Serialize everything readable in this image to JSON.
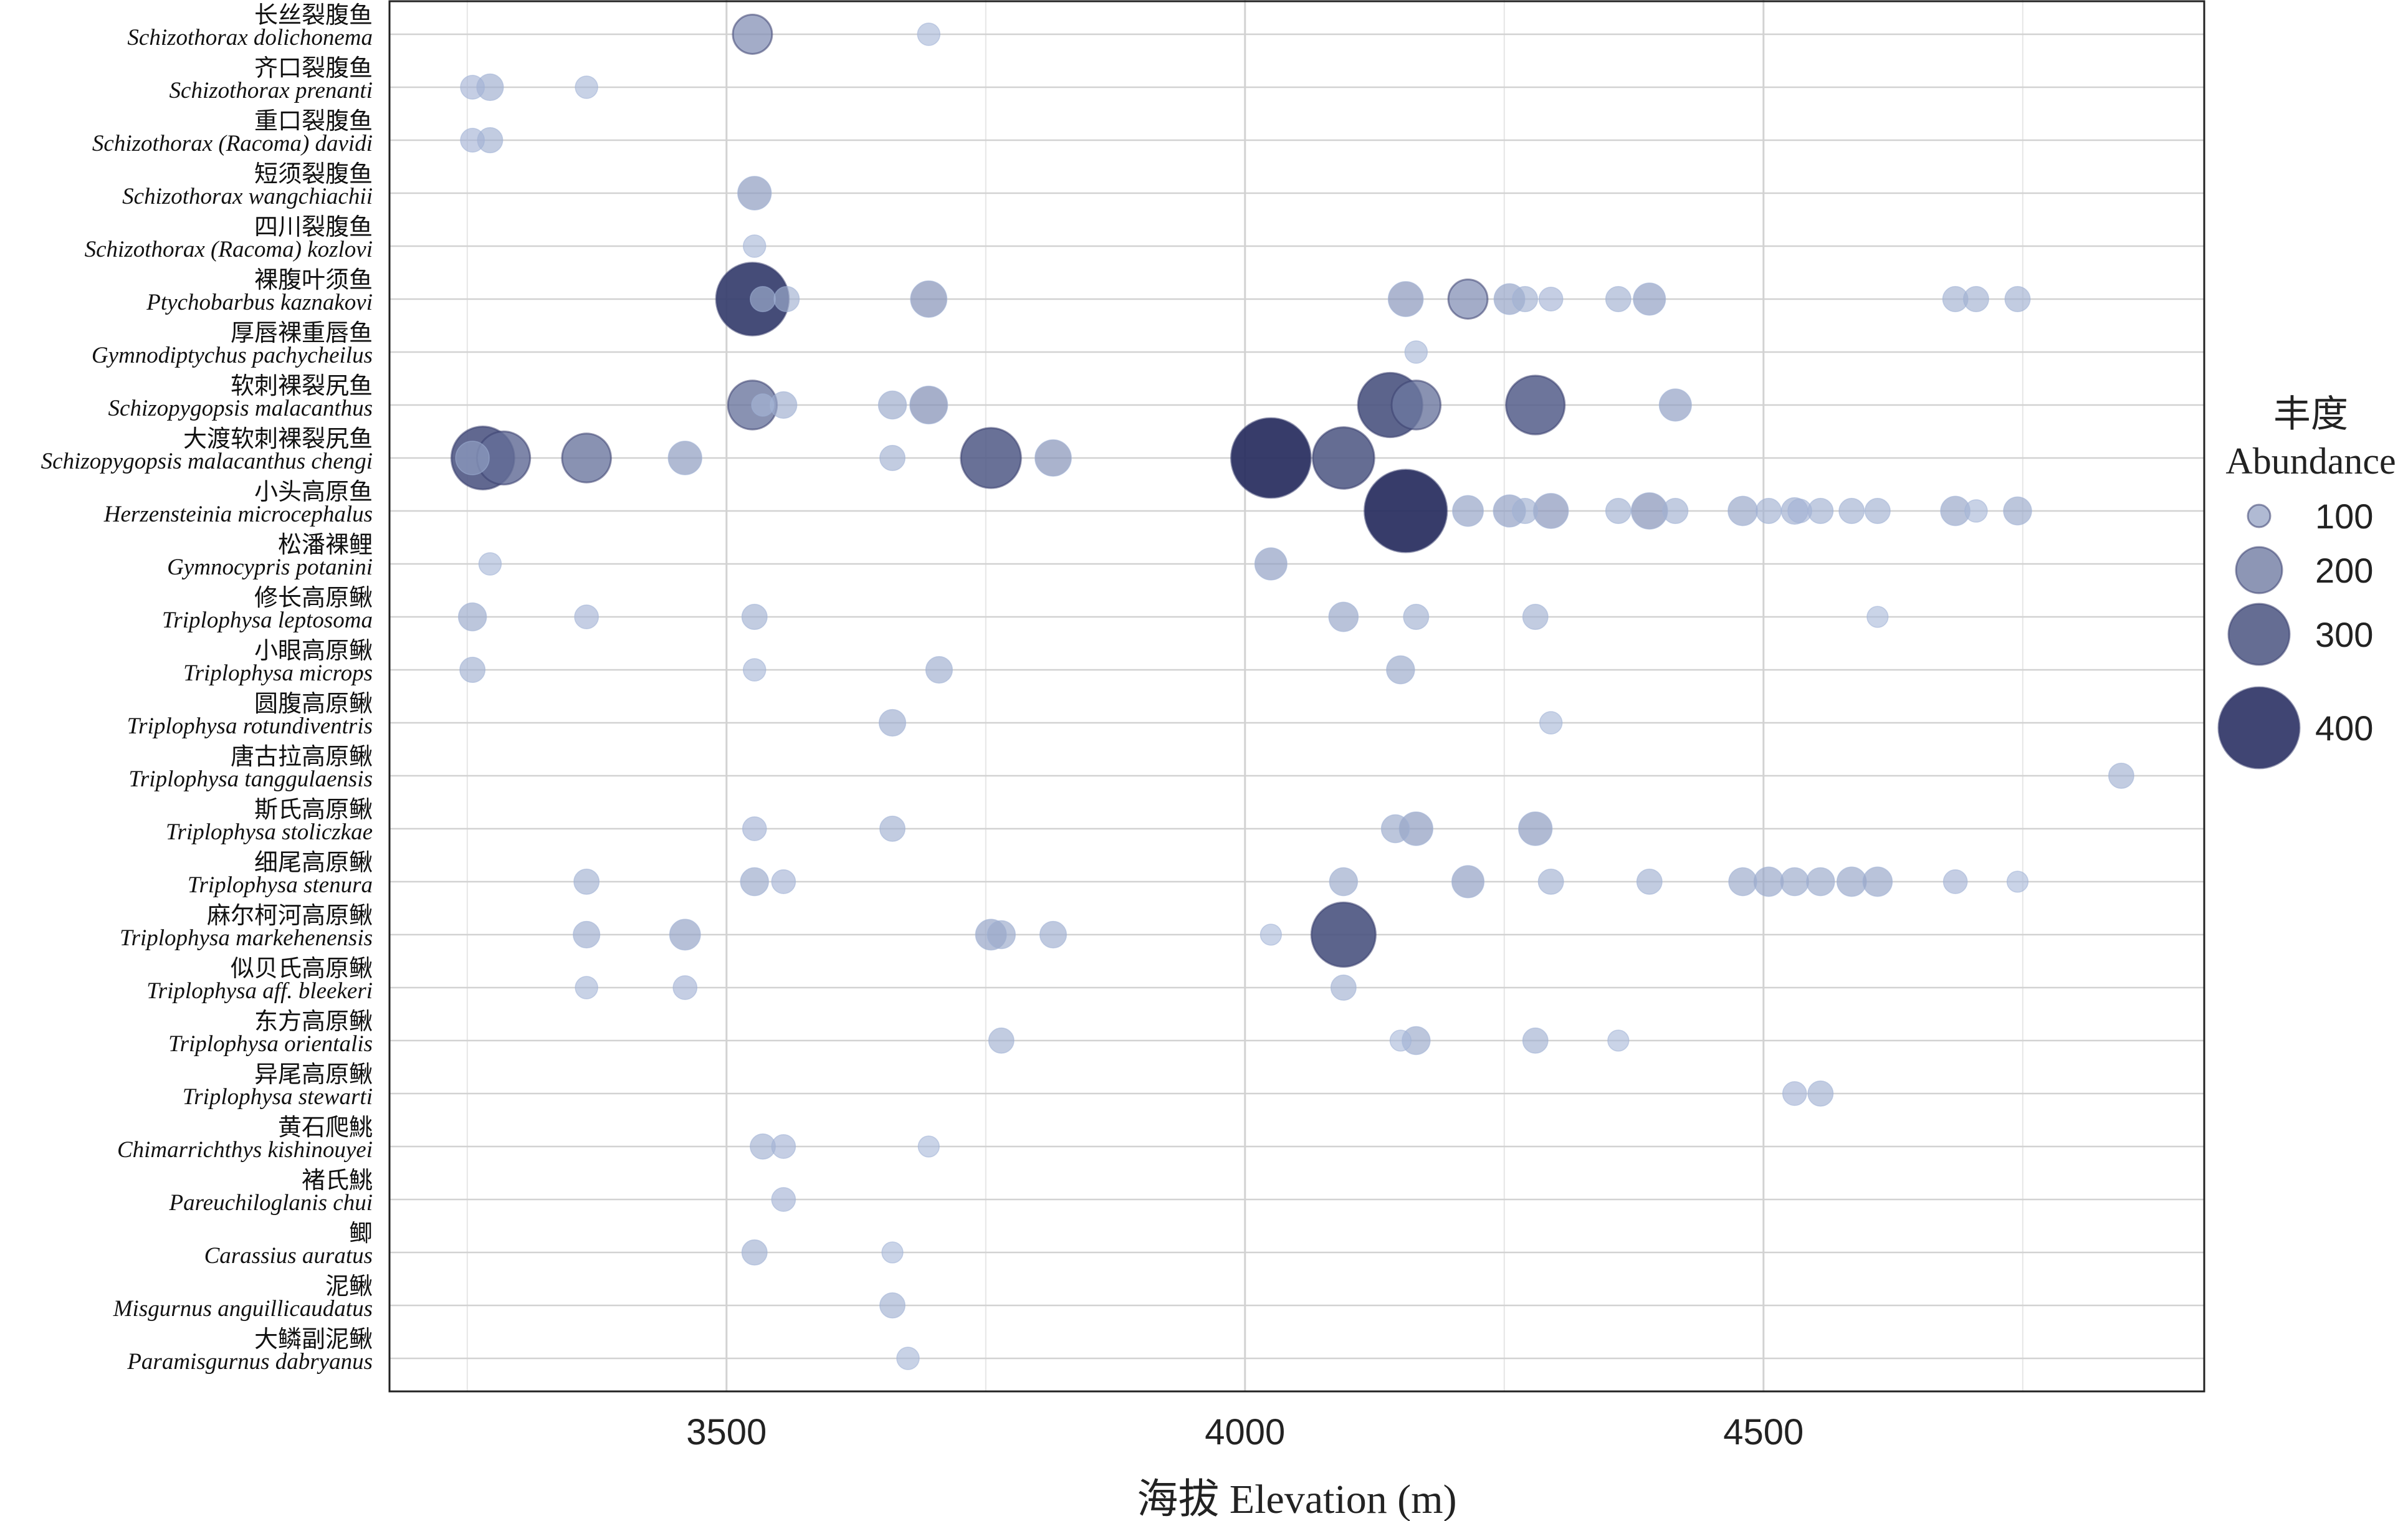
{
  "chart_data": {
    "type": "scatter",
    "variant": "bubble",
    "xlabel": "海拔 Elevation (m)",
    "xlim": [
      3175,
      4925
    ],
    "xticks": [
      3500,
      4000,
      4500
    ],
    "grid": true,
    "legend": {
      "position": "right",
      "title_cn": "丰度",
      "title_en": "Abundance",
      "entries": [
        100,
        200,
        300,
        400
      ]
    },
    "species": [
      {
        "cn": "长丝裂腹鱼",
        "latin": "Schizothorax dolichonema"
      },
      {
        "cn": "齐口裂腹鱼",
        "latin": "Schizothorax prenanti"
      },
      {
        "cn": "重口裂腹鱼",
        "latin": "Schizothorax (Racoma) davidi"
      },
      {
        "cn": "短须裂腹鱼",
        "latin": "Schizothorax wangchiachii"
      },
      {
        "cn": "四川裂腹鱼",
        "latin": "Schizothorax (Racoma) kozlovi"
      },
      {
        "cn": "裸腹叶须鱼",
        "latin": "Ptychobarbus kaznakovi"
      },
      {
        "cn": "厚唇裸重唇鱼",
        "latin": "Gymnodiptychus pachycheilus"
      },
      {
        "cn": "软刺裸裂尻鱼",
        "latin": "Schizopygopsis malacanthus"
      },
      {
        "cn": "大渡软刺裸裂尻鱼",
        "latin": "Schizopygopsis malacanthus chengi"
      },
      {
        "cn": "小头高原鱼",
        "latin": "Herzensteinia microcephalus"
      },
      {
        "cn": "松潘裸鲤",
        "latin": "Gymnocypris potanini"
      },
      {
        "cn": "修长高原鳅",
        "latin": "Triplophysa leptosoma"
      },
      {
        "cn": "小眼高原鳅",
        "latin": "Triplophysa microps"
      },
      {
        "cn": "圆腹高原鳅",
        "latin": "Triplophysa rotundiventris"
      },
      {
        "cn": "唐古拉高原鳅",
        "latin": "Triplophysa tanggulaensis"
      },
      {
        "cn": "斯氏高原鳅",
        "latin": "Triplophysa stoliczkae"
      },
      {
        "cn": "细尾高原鳅",
        "latin": "Triplophysa stenura"
      },
      {
        "cn": "麻尔柯河高原鳅",
        "latin": "Triplophysa markehenensis"
      },
      {
        "cn": "似贝氏高原鳅",
        "latin": "Triplophysa aff. bleekeri"
      },
      {
        "cn": "东方高原鳅",
        "latin": "Triplophysa orientalis"
      },
      {
        "cn": "异尾高原鳅",
        "latin": "Triplophysa stewarti"
      },
      {
        "cn": "黄石爬鮡",
        "latin": "Chimarrichthys kishinouyei"
      },
      {
        "cn": "褚氏鮡",
        "latin": "Pareuchiloglanis chui"
      },
      {
        "cn": "鲫",
        "latin": "Carassius auratus"
      },
      {
        "cn": "泥鳅",
        "latin": "Misgurnus anguillicaudatus"
      },
      {
        "cn": "大鳞副泥鳅",
        "latin": "Paramisgurnus dabryanus"
      }
    ],
    "points": [
      {
        "species": 0,
        "x": 3525,
        "abundance": 160
      },
      {
        "species": 0,
        "x": 3695,
        "abundance": 40
      },
      {
        "species": 1,
        "x": 3255,
        "abundance": 50
      },
      {
        "species": 1,
        "x": 3272,
        "abundance": 70
      },
      {
        "species": 1,
        "x": 3365,
        "abundance": 40
      },
      {
        "species": 2,
        "x": 3255,
        "abundance": 50
      },
      {
        "species": 2,
        "x": 3272,
        "abundance": 60
      },
      {
        "species": 3,
        "x": 3527,
        "abundance": 120
      },
      {
        "species": 4,
        "x": 3527,
        "abundance": 40
      },
      {
        "species": 5,
        "x": 3525,
        "abundance": 400
      },
      {
        "species": 5,
        "x": 3535,
        "abundance": 60
      },
      {
        "species": 5,
        "x": 3558,
        "abundance": 60
      },
      {
        "species": 5,
        "x": 3695,
        "abundance": 140
      },
      {
        "species": 5,
        "x": 4155,
        "abundance": 130
      },
      {
        "species": 5,
        "x": 4215,
        "abundance": 160
      },
      {
        "species": 5,
        "x": 4255,
        "abundance": 100
      },
      {
        "species": 5,
        "x": 4270,
        "abundance": 60
      },
      {
        "species": 5,
        "x": 4295,
        "abundance": 50
      },
      {
        "species": 5,
        "x": 4360,
        "abundance": 60
      },
      {
        "species": 5,
        "x": 4390,
        "abundance": 110
      },
      {
        "species": 5,
        "x": 4685,
        "abundance": 60
      },
      {
        "species": 5,
        "x": 4705,
        "abundance": 60
      },
      {
        "species": 5,
        "x": 4745,
        "abundance": 60
      },
      {
        "species": 6,
        "x": 4165,
        "abundance": 40
      },
      {
        "species": 7,
        "x": 3525,
        "abundance": 230
      },
      {
        "species": 7,
        "x": 3535,
        "abundance": 40
      },
      {
        "species": 7,
        "x": 3555,
        "abundance": 70
      },
      {
        "species": 7,
        "x": 3660,
        "abundance": 80
      },
      {
        "species": 7,
        "x": 3695,
        "abundance": 150
      },
      {
        "species": 7,
        "x": 4140,
        "abundance": 340
      },
      {
        "species": 7,
        "x": 4165,
        "abundance": 230
      },
      {
        "species": 7,
        "x": 4280,
        "abundance": 300
      },
      {
        "species": 7,
        "x": 4415,
        "abundance": 110
      },
      {
        "species": 8,
        "x": 3255,
        "abundance": 120
      },
      {
        "species": 8,
        "x": 3265,
        "abundance": 330
      },
      {
        "species": 8,
        "x": 3285,
        "abundance": 260
      },
      {
        "species": 8,
        "x": 3365,
        "abundance": 230
      },
      {
        "species": 8,
        "x": 3460,
        "abundance": 120
      },
      {
        "species": 8,
        "x": 3660,
        "abundance": 60
      },
      {
        "species": 8,
        "x": 3755,
        "abundance": 310
      },
      {
        "species": 8,
        "x": 3815,
        "abundance": 140
      },
      {
        "species": 8,
        "x": 4025,
        "abundance": 450
      },
      {
        "species": 8,
        "x": 4095,
        "abundance": 320
      },
      {
        "species": 9,
        "x": 4155,
        "abundance": 470
      },
      {
        "species": 9,
        "x": 4215,
        "abundance": 100
      },
      {
        "species": 9,
        "x": 4255,
        "abundance": 110
      },
      {
        "species": 9,
        "x": 4270,
        "abundance": 60
      },
      {
        "species": 9,
        "x": 4295,
        "abundance": 130
      },
      {
        "species": 9,
        "x": 4360,
        "abundance": 60
      },
      {
        "species": 9,
        "x": 4390,
        "abundance": 140
      },
      {
        "species": 9,
        "x": 4415,
        "abundance": 60
      },
      {
        "species": 9,
        "x": 4480,
        "abundance": 90
      },
      {
        "species": 9,
        "x": 4505,
        "abundance": 60
      },
      {
        "species": 9,
        "x": 4530,
        "abundance": 70
      },
      {
        "species": 9,
        "x": 4535,
        "abundance": 50
      },
      {
        "species": 9,
        "x": 4555,
        "abundance": 60
      },
      {
        "species": 9,
        "x": 4585,
        "abundance": 60
      },
      {
        "species": 9,
        "x": 4610,
        "abundance": 60
      },
      {
        "species": 9,
        "x": 4685,
        "abundance": 90
      },
      {
        "species": 9,
        "x": 4705,
        "abundance": 40
      },
      {
        "species": 9,
        "x": 4745,
        "abundance": 80
      },
      {
        "species": 10,
        "x": 3272,
        "abundance": 40
      },
      {
        "species": 10,
        "x": 4025,
        "abundance": 110
      },
      {
        "species": 11,
        "x": 3255,
        "abundance": 80
      },
      {
        "species": 11,
        "x": 3365,
        "abundance": 50
      },
      {
        "species": 11,
        "x": 3527,
        "abundance": 60
      },
      {
        "species": 11,
        "x": 4095,
        "abundance": 90
      },
      {
        "species": 11,
        "x": 4165,
        "abundance": 60
      },
      {
        "species": 11,
        "x": 4280,
        "abundance": 60
      },
      {
        "species": 11,
        "x": 4610,
        "abundance": 30
      },
      {
        "species": 12,
        "x": 3255,
        "abundance": 60
      },
      {
        "species": 12,
        "x": 3527,
        "abundance": 40
      },
      {
        "species": 12,
        "x": 3705,
        "abundance": 70
      },
      {
        "species": 12,
        "x": 4150,
        "abundance": 80
      },
      {
        "species": 13,
        "x": 3660,
        "abundance": 70
      },
      {
        "species": 13,
        "x": 4295,
        "abundance": 40
      },
      {
        "species": 14,
        "x": 4845,
        "abundance": 60
      },
      {
        "species": 15,
        "x": 3527,
        "abundance": 50
      },
      {
        "species": 15,
        "x": 3660,
        "abundance": 60
      },
      {
        "species": 15,
        "x": 4145,
        "abundance": 80
      },
      {
        "species": 15,
        "x": 4165,
        "abundance": 120
      },
      {
        "species": 15,
        "x": 4280,
        "abundance": 120
      },
      {
        "species": 16,
        "x": 3365,
        "abundance": 60
      },
      {
        "species": 16,
        "x": 3527,
        "abundance": 80
      },
      {
        "species": 16,
        "x": 3555,
        "abundance": 50
      },
      {
        "species": 16,
        "x": 4095,
        "abundance": 80
      },
      {
        "species": 16,
        "x": 4215,
        "abundance": 110
      },
      {
        "species": 16,
        "x": 4295,
        "abundance": 60
      },
      {
        "species": 16,
        "x": 4390,
        "abundance": 60
      },
      {
        "species": 16,
        "x": 4480,
        "abundance": 80
      },
      {
        "species": 16,
        "x": 4505,
        "abundance": 90
      },
      {
        "species": 16,
        "x": 4530,
        "abundance": 80
      },
      {
        "species": 16,
        "x": 4555,
        "abundance": 80
      },
      {
        "species": 16,
        "x": 4585,
        "abundance": 90
      },
      {
        "species": 16,
        "x": 4610,
        "abundance": 90
      },
      {
        "species": 16,
        "x": 4685,
        "abundance": 50
      },
      {
        "species": 16,
        "x": 4745,
        "abundance": 30
      },
      {
        "species": 17,
        "x": 3365,
        "abundance": 70
      },
      {
        "species": 17,
        "x": 3460,
        "abundance": 100
      },
      {
        "species": 17,
        "x": 3755,
        "abundance": 100
      },
      {
        "species": 17,
        "x": 3765,
        "abundance": 80
      },
      {
        "species": 17,
        "x": 3815,
        "abundance": 70
      },
      {
        "species": 17,
        "x": 4025,
        "abundance": 30
      },
      {
        "species": 17,
        "x": 4095,
        "abundance": 340
      },
      {
        "species": 18,
        "x": 3365,
        "abundance": 40
      },
      {
        "species": 18,
        "x": 3460,
        "abundance": 50
      },
      {
        "species": 18,
        "x": 4095,
        "abundance": 60
      },
      {
        "species": 19,
        "x": 3765,
        "abundance": 60
      },
      {
        "species": 19,
        "x": 4150,
        "abundance": 30
      },
      {
        "species": 19,
        "x": 4165,
        "abundance": 80
      },
      {
        "species": 19,
        "x": 4280,
        "abundance": 60
      },
      {
        "species": 19,
        "x": 4360,
        "abundance": 30
      },
      {
        "species": 20,
        "x": 4530,
        "abundance": 50
      },
      {
        "species": 20,
        "x": 4555,
        "abundance": 60
      },
      {
        "species": 21,
        "x": 3535,
        "abundance": 60
      },
      {
        "species": 21,
        "x": 3555,
        "abundance": 50
      },
      {
        "species": 21,
        "x": 3695,
        "abundance": 30
      },
      {
        "species": 22,
        "x": 3555,
        "abundance": 50
      },
      {
        "species": 23,
        "x": 3527,
        "abundance": 60
      },
      {
        "species": 23,
        "x": 3660,
        "abundance": 30
      },
      {
        "species": 24,
        "x": 3660,
        "abundance": 60
      },
      {
        "species": 25,
        "x": 3675,
        "abundance": 40
      }
    ]
  }
}
